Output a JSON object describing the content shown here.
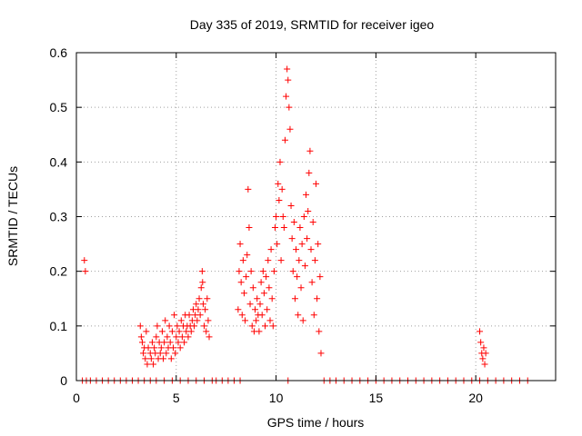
{
  "chart_data": {
    "type": "scatter",
    "title": "Day 335 of 2019, SRMTID for receiver igeo",
    "xlabel": "GPS time / hours",
    "ylabel": "SRMTID / TECUs",
    "xlim": [
      0,
      24
    ],
    "ylim": [
      0,
      0.6
    ],
    "xticks": [
      0,
      5,
      10,
      15,
      20
    ],
    "xtick_labels": [
      "0",
      "5",
      "10",
      "15",
      "20"
    ],
    "yticks": [
      0,
      0.1,
      0.2,
      0.3,
      0.4,
      0.5,
      0.6
    ],
    "ytick_labels": [
      "0",
      "0.1",
      "0.2",
      "0.3",
      "0.4",
      "0.5",
      "0.6"
    ],
    "grid": true,
    "marker": "+",
    "series": [
      {
        "name": "SRMTID",
        "color": "#ff0000",
        "points": [
          [
            0.4,
            0.22
          ],
          [
            0.45,
            0.2
          ],
          [
            0.3,
            0
          ],
          [
            0.5,
            0
          ],
          [
            0.7,
            0
          ],
          [
            1.0,
            0
          ],
          [
            1.3,
            0
          ],
          [
            1.6,
            0
          ],
          [
            1.9,
            0
          ],
          [
            2.2,
            0
          ],
          [
            2.5,
            0
          ],
          [
            2.8,
            0
          ],
          [
            3.1,
            0
          ],
          [
            3.4,
            0
          ],
          [
            3.7,
            0
          ],
          [
            4.0,
            0
          ],
          [
            4.4,
            0
          ],
          [
            4.8,
            0
          ],
          [
            5.2,
            0
          ],
          [
            5.6,
            0
          ],
          [
            6.0,
            0
          ],
          [
            6.4,
            0
          ],
          [
            6.8,
            0
          ],
          [
            7.0,
            0
          ],
          [
            7.3,
            0
          ],
          [
            7.6,
            0
          ],
          [
            7.9,
            0
          ],
          [
            8.2,
            0
          ],
          [
            10.6,
            0
          ],
          [
            12.4,
            0
          ],
          [
            12.7,
            0
          ],
          [
            13.0,
            0
          ],
          [
            13.4,
            0
          ],
          [
            13.8,
            0
          ],
          [
            14.2,
            0
          ],
          [
            14.6,
            0
          ],
          [
            15.0,
            0
          ],
          [
            15.4,
            0
          ],
          [
            15.8,
            0
          ],
          [
            16.2,
            0
          ],
          [
            16.6,
            0
          ],
          [
            17.0,
            0
          ],
          [
            17.4,
            0
          ],
          [
            17.8,
            0
          ],
          [
            18.2,
            0
          ],
          [
            18.6,
            0
          ],
          [
            19.0,
            0
          ],
          [
            19.4,
            0
          ],
          [
            19.8,
            0
          ],
          [
            20.2,
            0
          ],
          [
            20.6,
            0
          ],
          [
            21.0,
            0
          ],
          [
            21.4,
            0
          ],
          [
            21.8,
            0
          ],
          [
            22.2,
            0
          ],
          [
            22.6,
            0
          ],
          [
            3.2,
            0.1
          ],
          [
            3.25,
            0.08
          ],
          [
            3.3,
            0.07
          ],
          [
            3.35,
            0.05
          ],
          [
            3.4,
            0.06
          ],
          [
            3.45,
            0.04
          ],
          [
            3.5,
            0.09
          ],
          [
            3.55,
            0.03
          ],
          [
            3.6,
            0.06
          ],
          [
            3.7,
            0.05
          ],
          [
            3.75,
            0.04
          ],
          [
            3.8,
            0.07
          ],
          [
            3.85,
            0.03
          ],
          [
            3.9,
            0.06
          ],
          [
            3.95,
            0.05
          ],
          [
            4.0,
            0.08
          ],
          [
            4.05,
            0.1
          ],
          [
            4.1,
            0.04
          ],
          [
            4.15,
            0.07
          ],
          [
            4.2,
            0.05
          ],
          [
            4.25,
            0.06
          ],
          [
            4.3,
            0.09
          ],
          [
            4.35,
            0.04
          ],
          [
            4.4,
            0.07
          ],
          [
            4.45,
            0.11
          ],
          [
            4.5,
            0.05
          ],
          [
            4.55,
            0.08
          ],
          [
            4.6,
            0.06
          ],
          [
            4.65,
            0.1
          ],
          [
            4.7,
            0.07
          ],
          [
            4.75,
            0.04
          ],
          [
            4.8,
            0.09
          ],
          [
            4.85,
            0.06
          ],
          [
            4.9,
            0.12
          ],
          [
            4.95,
            0.05
          ],
          [
            5.0,
            0.08
          ],
          [
            5.05,
            0.1
          ],
          [
            5.1,
            0.07
          ],
          [
            5.15,
            0.09
          ],
          [
            5.2,
            0.06
          ],
          [
            5.25,
            0.11
          ],
          [
            5.3,
            0.08
          ],
          [
            5.35,
            0.1
          ],
          [
            5.4,
            0.07
          ],
          [
            5.45,
            0.12
          ],
          [
            5.5,
            0.09
          ],
          [
            5.55,
            0.1
          ],
          [
            5.6,
            0.08
          ],
          [
            5.65,
            0.12
          ],
          [
            5.7,
            0.1
          ],
          [
            5.75,
            0.09
          ],
          [
            5.8,
            0.11
          ],
          [
            5.85,
            0.13
          ],
          [
            5.9,
            0.1
          ],
          [
            5.95,
            0.12
          ],
          [
            6.0,
            0.14
          ],
          [
            6.05,
            0.11
          ],
          [
            6.1,
            0.13
          ],
          [
            6.15,
            0.15
          ],
          [
            6.2,
            0.12
          ],
          [
            6.25,
            0.17
          ],
          [
            6.3,
            0.2
          ],
          [
            6.32,
            0.18
          ],
          [
            6.35,
            0.14
          ],
          [
            6.4,
            0.1
          ],
          [
            6.45,
            0.13
          ],
          [
            6.5,
            0.09
          ],
          [
            6.55,
            0.15
          ],
          [
            6.6,
            0.11
          ],
          [
            6.65,
            0.08
          ],
          [
            8.1,
            0.13
          ],
          [
            8.15,
            0.2
          ],
          [
            8.2,
            0.25
          ],
          [
            8.25,
            0.18
          ],
          [
            8.3,
            0.12
          ],
          [
            8.35,
            0.22
          ],
          [
            8.4,
            0.16
          ],
          [
            8.45,
            0.11
          ],
          [
            8.5,
            0.19
          ],
          [
            8.55,
            0.23
          ],
          [
            8.6,
            0.35
          ],
          [
            8.65,
            0.28
          ],
          [
            8.7,
            0.14
          ],
          [
            8.75,
            0.2
          ],
          [
            8.8,
            0.1
          ],
          [
            8.85,
            0.17
          ],
          [
            8.9,
            0.09
          ],
          [
            8.95,
            0.13
          ],
          [
            9.0,
            0.11
          ],
          [
            9.05,
            0.15
          ],
          [
            9.1,
            0.12
          ],
          [
            9.15,
            0.09
          ],
          [
            9.2,
            0.14
          ],
          [
            9.25,
            0.18
          ],
          [
            9.3,
            0.12
          ],
          [
            9.35,
            0.2
          ],
          [
            9.4,
            0.16
          ],
          [
            9.45,
            0.1
          ],
          [
            9.5,
            0.19
          ],
          [
            9.55,
            0.13
          ],
          [
            9.6,
            0.22
          ],
          [
            9.65,
            0.17
          ],
          [
            9.7,
            0.11
          ],
          [
            9.75,
            0.24
          ],
          [
            9.8,
            0.15
          ],
          [
            9.85,
            0.1
          ],
          [
            9.9,
            0.2
          ],
          [
            9.95,
            0.28
          ],
          [
            10.0,
            0.3
          ],
          [
            10.05,
            0.25
          ],
          [
            10.1,
            0.36
          ],
          [
            10.15,
            0.33
          ],
          [
            10.2,
            0.4
          ],
          [
            10.25,
            0.22
          ],
          [
            10.3,
            0.35
          ],
          [
            10.35,
            0.3
          ],
          [
            10.4,
            0.28
          ],
          [
            10.45,
            0.44
          ],
          [
            10.5,
            0.52
          ],
          [
            10.55,
            0.57
          ],
          [
            10.6,
            0.55
          ],
          [
            10.65,
            0.5
          ],
          [
            10.7,
            0.46
          ],
          [
            10.75,
            0.32
          ],
          [
            10.8,
            0.26
          ],
          [
            10.85,
            0.2
          ],
          [
            10.9,
            0.29
          ],
          [
            10.95,
            0.15
          ],
          [
            11.0,
            0.24
          ],
          [
            11.05,
            0.19
          ],
          [
            11.1,
            0.12
          ],
          [
            11.15,
            0.22
          ],
          [
            11.2,
            0.28
          ],
          [
            11.25,
            0.17
          ],
          [
            11.3,
            0.25
          ],
          [
            11.35,
            0.11
          ],
          [
            11.4,
            0.3
          ],
          [
            11.45,
            0.21
          ],
          [
            11.5,
            0.34
          ],
          [
            11.55,
            0.26
          ],
          [
            11.6,
            0.31
          ],
          [
            11.65,
            0.38
          ],
          [
            11.7,
            0.42
          ],
          [
            11.75,
            0.24
          ],
          [
            11.8,
            0.18
          ],
          [
            11.85,
            0.29
          ],
          [
            11.9,
            0.12
          ],
          [
            11.95,
            0.22
          ],
          [
            12.0,
            0.36
          ],
          [
            12.05,
            0.15
          ],
          [
            12.1,
            0.25
          ],
          [
            12.15,
            0.09
          ],
          [
            12.2,
            0.19
          ],
          [
            12.25,
            0.05
          ],
          [
            20.2,
            0.09
          ],
          [
            20.25,
            0.07
          ],
          [
            20.3,
            0.05
          ],
          [
            20.35,
            0.04
          ],
          [
            20.4,
            0.06
          ],
          [
            20.45,
            0.03
          ],
          [
            20.5,
            0.05
          ]
        ]
      }
    ]
  }
}
